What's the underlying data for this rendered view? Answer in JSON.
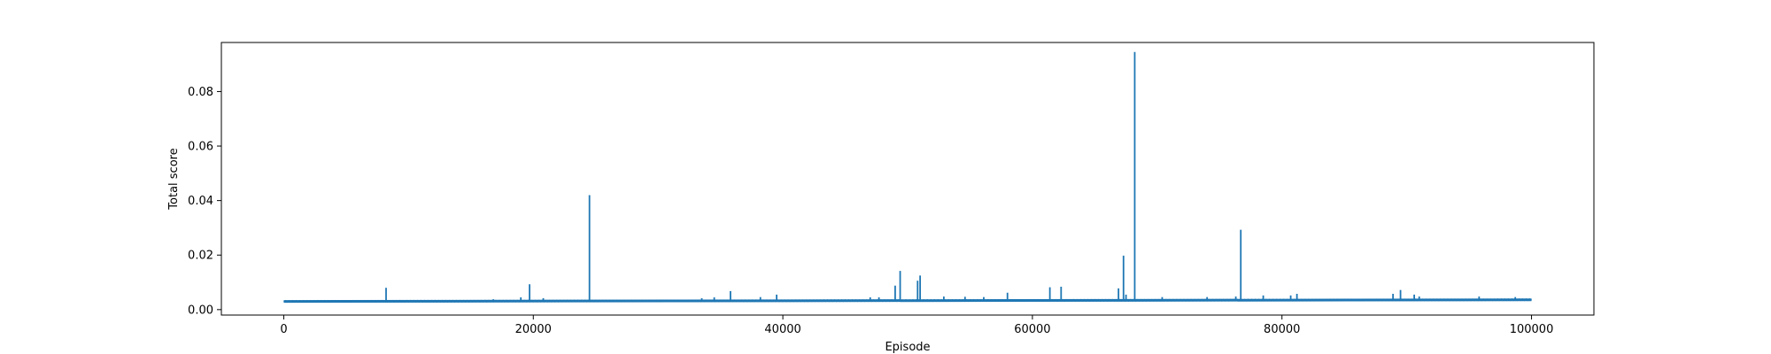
{
  "chart_data": {
    "type": "line",
    "title": "",
    "xlabel": "Episode",
    "ylabel": "Total score",
    "xlim": [
      -5000,
      105000
    ],
    "ylim": [
      -0.002,
      0.098
    ],
    "x_ticks": [
      0,
      20000,
      40000,
      60000,
      80000,
      100000
    ],
    "x_tick_labels": [
      "0",
      "20000",
      "40000",
      "60000",
      "80000",
      "100000"
    ],
    "y_ticks": [
      0.0,
      0.02,
      0.04,
      0.06,
      0.08
    ],
    "y_tick_labels": [
      "0.00",
      "0.02",
      "0.04",
      "0.06",
      "0.08"
    ],
    "grid": false,
    "line_color": "#1f77b4",
    "series": [
      {
        "name": "",
        "baseline": {
          "x": [
            0,
            100000
          ],
          "y": [
            0.003,
            0.0036
          ]
        },
        "spikes": [
          {
            "x": 8200,
            "y": 0.008
          },
          {
            "x": 16800,
            "y": 0.0038
          },
          {
            "x": 19000,
            "y": 0.0045
          },
          {
            "x": 19700,
            "y": 0.0093
          },
          {
            "x": 20800,
            "y": 0.0042
          },
          {
            "x": 24500,
            "y": 0.042
          },
          {
            "x": 33500,
            "y": 0.0042
          },
          {
            "x": 34500,
            "y": 0.0045
          },
          {
            "x": 35800,
            "y": 0.0068
          },
          {
            "x": 38200,
            "y": 0.0046
          },
          {
            "x": 39500,
            "y": 0.0055
          },
          {
            "x": 47000,
            "y": 0.0045
          },
          {
            "x": 47700,
            "y": 0.0045
          },
          {
            "x": 49000,
            "y": 0.0088
          },
          {
            "x": 49400,
            "y": 0.0142
          },
          {
            "x": 50800,
            "y": 0.0106
          },
          {
            "x": 51000,
            "y": 0.0125
          },
          {
            "x": 52900,
            "y": 0.0048
          },
          {
            "x": 54600,
            "y": 0.0047
          },
          {
            "x": 56100,
            "y": 0.0046
          },
          {
            "x": 58000,
            "y": 0.0062
          },
          {
            "x": 61400,
            "y": 0.0082
          },
          {
            "x": 62300,
            "y": 0.0084
          },
          {
            "x": 66900,
            "y": 0.0078
          },
          {
            "x": 67300,
            "y": 0.0198
          },
          {
            "x": 67500,
            "y": 0.0055
          },
          {
            "x": 68200,
            "y": 0.0945
          },
          {
            "x": 70400,
            "y": 0.0046
          },
          {
            "x": 74000,
            "y": 0.0046
          },
          {
            "x": 76300,
            "y": 0.0048
          },
          {
            "x": 76700,
            "y": 0.0293
          },
          {
            "x": 78500,
            "y": 0.0052
          },
          {
            "x": 80700,
            "y": 0.0052
          },
          {
            "x": 81200,
            "y": 0.0058
          },
          {
            "x": 88900,
            "y": 0.0058
          },
          {
            "x": 89500,
            "y": 0.0072
          },
          {
            "x": 90600,
            "y": 0.0055
          },
          {
            "x": 91000,
            "y": 0.0048
          },
          {
            "x": 95800,
            "y": 0.0048
          },
          {
            "x": 98700,
            "y": 0.0046
          }
        ]
      }
    ]
  }
}
